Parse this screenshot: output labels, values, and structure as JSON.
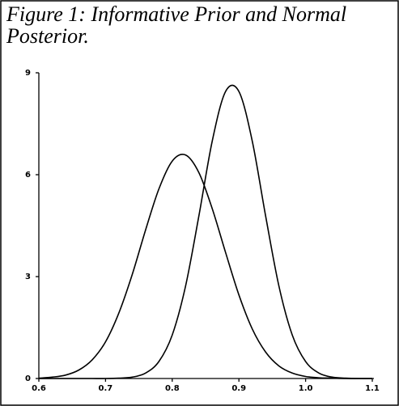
{
  "chart_data": {
    "type": "line",
    "title": "Figure 1: Informative Prior and Normal Posterior.",
    "x": [
      0.6,
      0.62,
      0.64,
      0.66,
      0.68,
      0.7,
      0.72,
      0.74,
      0.76,
      0.78,
      0.8,
      0.82,
      0.84,
      0.86,
      0.88,
      0.9,
      0.92,
      0.94,
      0.96,
      0.98,
      1.0,
      1.02,
      1.04,
      1.06,
      1.08,
      1.1
    ],
    "series": [
      {
        "color": "#000000",
        "values": [
          0.01,
          0.04,
          0.1,
          0.25,
          0.55,
          1.08,
          1.93,
          3.06,
          4.37,
          5.58,
          6.4,
          6.58,
          6.06,
          5.0,
          3.71,
          2.46,
          1.46,
          0.78,
          0.37,
          0.16,
          0.06,
          0.02,
          0.01,
          0,
          0,
          0
        ]
      },
      {
        "color": "#000000",
        "values": [
          0,
          0,
          0,
          0,
          0,
          0,
          0.01,
          0.04,
          0.16,
          0.5,
          1.28,
          2.72,
          4.79,
          6.99,
          8.45,
          8.45,
          6.99,
          4.79,
          2.72,
          1.28,
          0.5,
          0.16,
          0.04,
          0.01,
          0,
          0
        ]
      }
    ],
    "xlim": [
      0.6,
      1.1
    ],
    "xticks": [
      0.6,
      0.7,
      0.8,
      0.9,
      {
        "value": 1,
        "label": "1.0"
      },
      1.1
    ],
    "ylim": [
      0,
      9
    ],
    "yticks": [
      0,
      3,
      6,
      9
    ],
    "grid": false
  }
}
